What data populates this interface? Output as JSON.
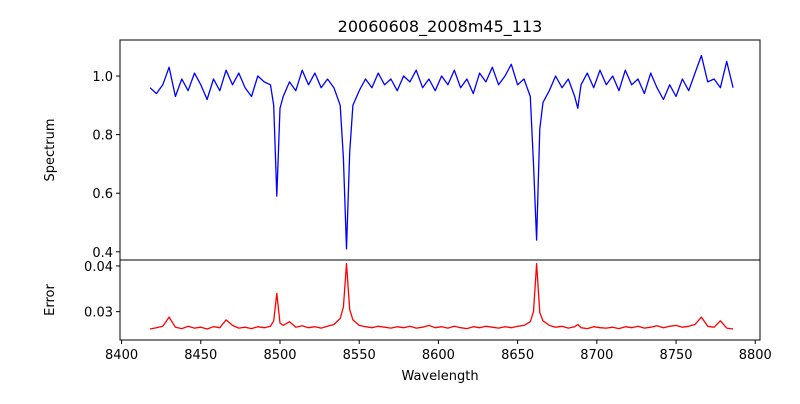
{
  "chart_data": [
    {
      "type": "line",
      "title": "20060608_2008m45_113",
      "xlabel": "",
      "ylabel": "Spectrum",
      "xlim": [
        8399,
        8803
      ],
      "ylim": [
        0.372,
        1.123
      ],
      "yticks": [
        0.4,
        0.6,
        0.8,
        1.0
      ],
      "ytick_labels": [
        "0.4",
        "0.6",
        "0.8",
        "1.0"
      ],
      "grid": false,
      "series": [
        {
          "name": "Spectrum",
          "color": "#0000ff",
          "x": [
            8418,
            8422,
            8426,
            8430,
            8434,
            8438,
            8442,
            8446,
            8450,
            8454,
            8458,
            8462,
            8466,
            8470,
            8474,
            8478,
            8482,
            8486,
            8490,
            8494,
            8496,
            8498,
            8500,
            8502,
            8506,
            8510,
            8514,
            8518,
            8522,
            8526,
            8530,
            8534,
            8538,
            8540,
            8542,
            8544,
            8546,
            8550,
            8554,
            8558,
            8562,
            8566,
            8570,
            8574,
            8578,
            8582,
            8586,
            8590,
            8594,
            8598,
            8602,
            8606,
            8610,
            8614,
            8618,
            8622,
            8626,
            8630,
            8634,
            8638,
            8642,
            8646,
            8650,
            8654,
            8658,
            8660,
            8662,
            8664,
            8666,
            8670,
            8674,
            8678,
            8682,
            8686,
            8688,
            8690,
            8694,
            8698,
            8702,
            8706,
            8710,
            8714,
            8718,
            8722,
            8726,
            8730,
            8734,
            8738,
            8742,
            8746,
            8750,
            8754,
            8758,
            8762,
            8766,
            8770,
            8774,
            8778,
            8782,
            8786
          ],
          "y": [
            0.96,
            0.94,
            0.97,
            1.03,
            0.93,
            0.99,
            0.95,
            1.01,
            0.97,
            0.92,
            0.99,
            0.95,
            1.02,
            0.97,
            1.01,
            0.96,
            0.93,
            1.0,
            0.98,
            0.97,
            0.9,
            0.59,
            0.89,
            0.93,
            0.98,
            0.95,
            1.02,
            0.97,
            1.01,
            0.96,
            0.99,
            0.96,
            0.9,
            0.72,
            0.41,
            0.74,
            0.9,
            0.95,
            0.99,
            0.96,
            1.01,
            0.97,
            0.99,
            0.95,
            1.0,
            0.98,
            1.02,
            0.96,
            0.99,
            0.95,
            1.0,
            0.97,
            1.02,
            0.96,
            0.99,
            0.94,
            1.01,
            0.98,
            1.03,
            0.97,
            1.0,
            1.04,
            0.97,
            0.99,
            0.93,
            0.7,
            0.44,
            0.82,
            0.91,
            0.95,
            1.0,
            0.96,
            0.99,
            0.93,
            0.89,
            0.97,
            1.01,
            0.96,
            1.02,
            0.97,
            1.0,
            0.95,
            1.02,
            0.97,
            0.99,
            0.94,
            1.01,
            0.96,
            0.92,
            0.97,
            0.93,
            0.99,
            0.95,
            1.01,
            1.07,
            0.98,
            0.99,
            0.96,
            1.05,
            0.96
          ]
        }
      ]
    },
    {
      "type": "line",
      "title": "",
      "xlabel": "Wavelength",
      "ylabel": "Error",
      "xlim": [
        8399,
        8803
      ],
      "ylim": [
        0.0238,
        0.0413
      ],
      "xticks": [
        8400,
        8450,
        8500,
        8550,
        8600,
        8650,
        8700,
        8750,
        8800
      ],
      "xtick_labels": [
        "8400",
        "8450",
        "8500",
        "8550",
        "8600",
        "8650",
        "8700",
        "8750",
        "8800"
      ],
      "yticks": [
        0.03,
        0.04
      ],
      "ytick_labels": [
        "0.03",
        "0.04"
      ],
      "grid": false,
      "series": [
        {
          "name": "Error",
          "color": "#ff0000",
          "y": [
            0.0262,
            0.0265,
            0.0268,
            0.0288,
            0.0266,
            0.0263,
            0.0268,
            0.0264,
            0.0266,
            0.0262,
            0.0267,
            0.0265,
            0.0282,
            0.027,
            0.0264,
            0.0266,
            0.0263,
            0.0267,
            0.0265,
            0.0268,
            0.028,
            0.034,
            0.0275,
            0.027,
            0.0278,
            0.0266,
            0.0269,
            0.0265,
            0.0267,
            0.0264,
            0.0268,
            0.0272,
            0.0285,
            0.031,
            0.0405,
            0.0305,
            0.0282,
            0.027,
            0.0267,
            0.0265,
            0.0268,
            0.0266,
            0.0264,
            0.0267,
            0.0265,
            0.0268,
            0.0264,
            0.0266,
            0.027,
            0.0265,
            0.0267,
            0.0264,
            0.0268,
            0.0265,
            0.0263,
            0.0267,
            0.0265,
            0.0268,
            0.0266,
            0.0264,
            0.0267,
            0.0265,
            0.0268,
            0.027,
            0.0278,
            0.03,
            0.0405,
            0.0298,
            0.028,
            0.027,
            0.0266,
            0.0268,
            0.0264,
            0.0267,
            0.0272,
            0.0265,
            0.0263,
            0.0267,
            0.0265,
            0.0264,
            0.0266,
            0.0263,
            0.0267,
            0.0265,
            0.0268,
            0.0264,
            0.0266,
            0.0269,
            0.0265,
            0.0268,
            0.027,
            0.0266,
            0.0268,
            0.0272,
            0.0288,
            0.0268,
            0.0266,
            0.028,
            0.0264,
            0.0262
          ]
        }
      ]
    }
  ]
}
